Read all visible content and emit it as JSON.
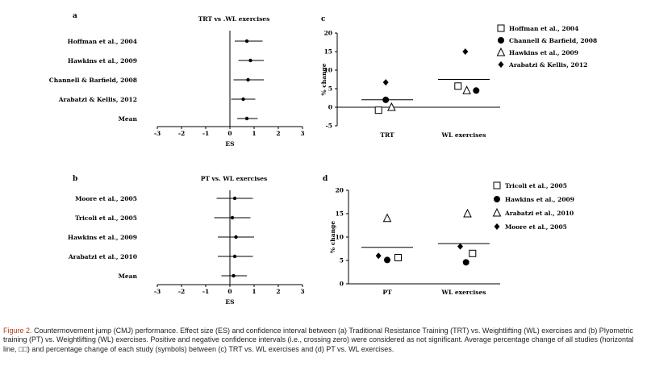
{
  "chart_data": [
    {
      "panel": "a",
      "type": "forest",
      "title": "TRT vs .WL exercises",
      "xlabel": "ES",
      "xlim": [
        -3,
        3
      ],
      "ticks": [
        -3,
        -2,
        -1,
        0,
        1,
        2,
        3
      ],
      "tick_labels": [
        "-3",
        "-2",
        "-1",
        "0",
        "1",
        "2",
        "3"
      ],
      "rows": [
        {
          "label": "Hoffman et al., 2004",
          "es": 0.7,
          "ci": [
            0.2,
            1.35
          ]
        },
        {
          "label": "Hawkins et al., 2009",
          "es": 0.85,
          "ci": [
            0.35,
            1.4
          ]
        },
        {
          "label": "Channell & Barfield, 2008",
          "es": 0.75,
          "ci": [
            0.15,
            1.4
          ]
        },
        {
          "label": "Arabatzi & Kellis, 2012",
          "es": 0.55,
          "ci": [
            0.05,
            1.05
          ]
        },
        {
          "label": "Mean",
          "es": 0.7,
          "ci": [
            0.3,
            1.15
          ]
        }
      ]
    },
    {
      "panel": "b",
      "type": "forest",
      "title": "PT vs. WL exercises",
      "xlabel": "ES",
      "xlim": [
        -3,
        3
      ],
      "ticks": [
        -3,
        -2,
        -1,
        0,
        1,
        2,
        3
      ],
      "tick_labels": [
        "-3",
        "-2",
        "-1",
        "0",
        "1",
        "2",
        "3"
      ],
      "rows": [
        {
          "label": "Moore et al., 2005",
          "es": 0.2,
          "ci": [
            -0.55,
            0.95
          ]
        },
        {
          "label": "Tricoli et al., 2005",
          "es": 0.1,
          "ci": [
            -0.65,
            0.85
          ]
        },
        {
          "label": "Hawkins et al., 2009",
          "es": 0.25,
          "ci": [
            -0.5,
            1.0
          ]
        },
        {
          "label": "Arabatzi et al., 2010",
          "es": 0.2,
          "ci": [
            -0.5,
            0.95
          ]
        },
        {
          "label": "Mean",
          "es": 0.15,
          "ci": [
            -0.35,
            0.7
          ]
        }
      ]
    },
    {
      "panel": "c",
      "type": "scatter",
      "ylabel": "% change",
      "ylim": [
        -5,
        20
      ],
      "yticks": [
        -5,
        0,
        5,
        10,
        15,
        20
      ],
      "ytick_labels": [
        "-5",
        "0",
        "5",
        "10",
        "15",
        "20"
      ],
      "categories": [
        "TRT",
        "WL exercises"
      ],
      "means": [
        2,
        7.5
      ],
      "series": [
        {
          "name": "Hoffman et al., 2004",
          "marker": "square",
          "points": [
            {
              "cat": 0,
              "offset": -0.12,
              "y": -0.8
            },
            {
              "cat": 1,
              "offset": -0.08,
              "y": 5.7
            }
          ]
        },
        {
          "name": "Channell & Barfield, 2008",
          "marker": "circle",
          "points": [
            {
              "cat": 0,
              "offset": -0.02,
              "y": 2.0
            },
            {
              "cat": 1,
              "offset": 0.17,
              "y": 4.5
            }
          ]
        },
        {
          "name": "Hawkins et al., 2009",
          "marker": "triangle",
          "points": [
            {
              "cat": 0,
              "offset": 0.06,
              "y": 0
            },
            {
              "cat": 1,
              "offset": 0.04,
              "y": 4.5
            }
          ]
        },
        {
          "name": "Arabatzi & Kellis, 2012",
          "marker": "diamond",
          "points": [
            {
              "cat": 0,
              "offset": -0.02,
              "y": 6.7
            },
            {
              "cat": 1,
              "offset": 0.02,
              "y": 15.0
            }
          ]
        }
      ]
    },
    {
      "panel": "d",
      "type": "scatter",
      "ylabel": "% change",
      "ylim": [
        0,
        20
      ],
      "yticks": [
        0,
        5,
        10,
        15,
        20
      ],
      "ytick_labels": [
        "0",
        "5",
        "10",
        "15",
        "20"
      ],
      "categories": [
        "PT",
        "WL exercises"
      ],
      "means": [
        7.8,
        8.6
      ],
      "series": [
        {
          "name": "Tricoli et al., 2005",
          "marker": "square",
          "points": [
            {
              "cat": 0,
              "offset": 0.15,
              "y": 5.6
            },
            {
              "cat": 1,
              "offset": 0.12,
              "y": 6.5
            }
          ]
        },
        {
          "name": "Hawkins et al., 2009",
          "marker": "circle",
          "points": [
            {
              "cat": 0,
              "offset": 0.0,
              "y": 5.1
            },
            {
              "cat": 1,
              "offset": 0.03,
              "y": 4.6
            }
          ]
        },
        {
          "name": "Arabatzi et al., 2010",
          "marker": "triangle",
          "points": [
            {
              "cat": 0,
              "offset": 0.0,
              "y": 14.0
            },
            {
              "cat": 1,
              "offset": 0.05,
              "y": 15.0
            }
          ]
        },
        {
          "name": "Moore et al., 2005",
          "marker": "diamond",
          "points": [
            {
              "cat": 0,
              "offset": -0.12,
              "y": 6.0
            },
            {
              "cat": 1,
              "offset": -0.05,
              "y": 8.0
            }
          ]
        }
      ]
    }
  ],
  "caption": {
    "label": "Figure 2.",
    "text": " Countermovement jump (CMJ) performance. Effect size (ES) and confidence interval between (a) Traditional Resistance Training (TRT) vs. Weightlifting (WL) exercises and (b) Plyometric training (PT) vs. Weightlifting (WL) exercises. Positive and negative confidence intervals (i.e., crossing zero) were considered as not significant. Average percentage change of all studies (horizontal line, □□) and percentage change of each study (symbols) between (c) TRT vs. WL exercises and (d) PT vs. WL exercises."
  }
}
